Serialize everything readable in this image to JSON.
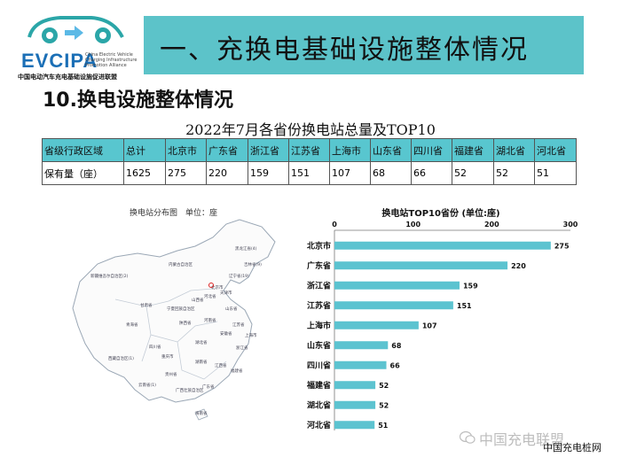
{
  "logo": {
    "name": "EVCIPA",
    "sub": "China Electric Vehicle Charging Infrastructure Promotion Alliance",
    "cn": "中国电动汽车充电基础设施促进联盟"
  },
  "banner": {
    "title": "一、充换电基础设施整体情况"
  },
  "section": {
    "title": "10.换电设施整体情况"
  },
  "table": {
    "title": "2022年7月各省份换电站总量及TOP10",
    "headers": [
      "省级行政区域",
      "总计",
      "北京市",
      "广东省",
      "浙江省",
      "江苏省",
      "上海市",
      "山东省",
      "四川省",
      "福建省",
      "湖北省",
      "河北省"
    ],
    "row": [
      "保有量（座）",
      "1625",
      "275",
      "220",
      "159",
      "151",
      "107",
      "68",
      "66",
      "52",
      "52",
      "51"
    ]
  },
  "map": {
    "title": "换电站分布图　单位：座",
    "labels": [
      "黑龙江省(4)",
      "吉林省(9)",
      "辽宁省(19)",
      "新疆维吾尔自治区(2)",
      "内蒙古自治区",
      "北京市",
      "河北省",
      "天津市",
      "山西省",
      "山东省",
      "甘肃省",
      "宁夏回族自治区",
      "青海省",
      "陕西省",
      "河南省",
      "江苏省",
      "上海市",
      "西藏自治区(1)",
      "四川省",
      "湖北省",
      "安徽省",
      "浙江省",
      "重庆市",
      "湖南省",
      "江西省",
      "福建省",
      "贵州省",
      "云南省(1)",
      "广西壮族自治区",
      "广东省",
      "海南省"
    ]
  },
  "chart_data": {
    "type": "bar",
    "orientation": "horizontal",
    "title": "换电站TOP10省份 (单位:座)",
    "categories": [
      "北京市",
      "广东省",
      "浙江省",
      "江苏省",
      "上海市",
      "山东省",
      "四川省",
      "福建省",
      "湖北省",
      "河北省"
    ],
    "values": [
      275,
      220,
      159,
      151,
      107,
      68,
      66,
      52,
      52,
      51
    ],
    "xlim": [
      0,
      300
    ],
    "ticks": [
      "0",
      "100",
      "200",
      "300"
    ],
    "grid": false,
    "bar_color": "#5cc3d0"
  },
  "watermark": {
    "text": "中国充电联盟"
  },
  "footer": {
    "text": "中国充电桩网"
  }
}
